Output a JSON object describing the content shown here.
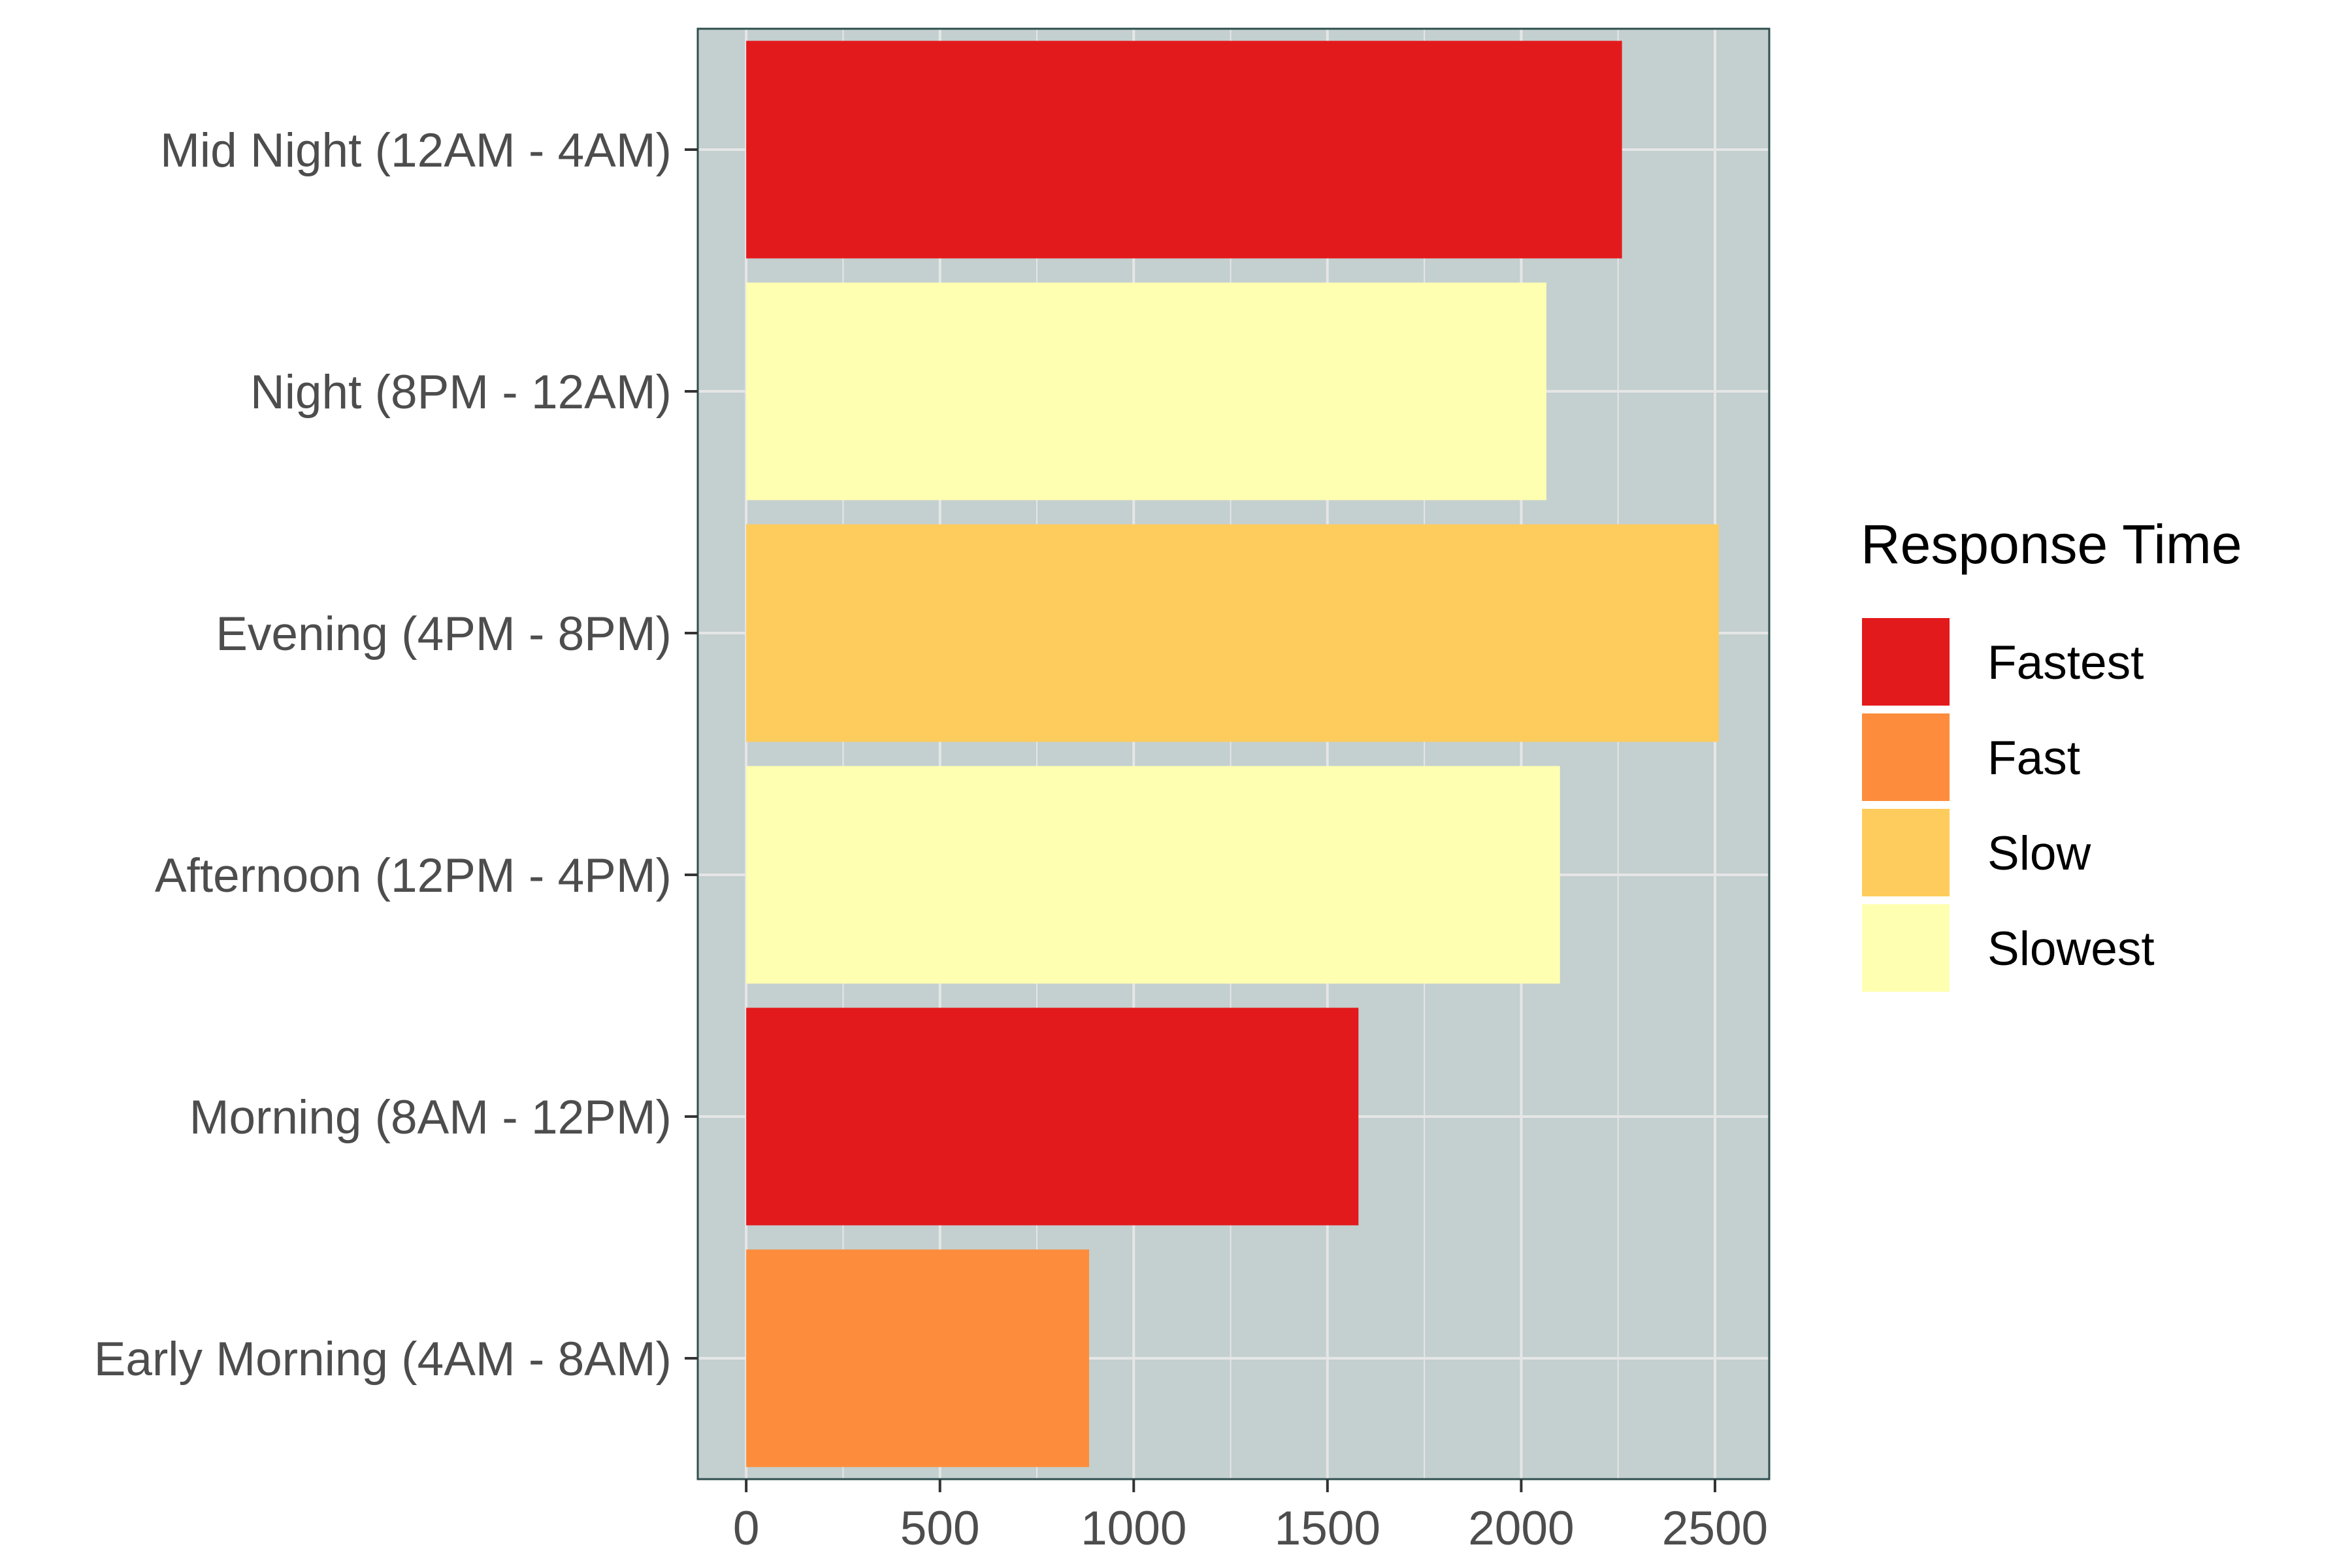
{
  "chart_data": {
    "type": "bar",
    "orientation": "horizontal",
    "title": "",
    "xlabel": "",
    "ylabel": "",
    "categories": [
      "Early Morning (4AM - 8AM)",
      "Morning (8AM - 12PM)",
      "Afternoon (12PM - 4PM)",
      "Evening (4PM - 8PM)",
      "Night (8PM - 12AM)",
      "Mid Night (12AM - 4AM)"
    ],
    "values": [
      885,
      1580,
      2100,
      2510,
      2065,
      2260
    ],
    "groups": [
      "Fast",
      "Fastest",
      "Slowest",
      "Slow",
      "Slowest",
      "Fastest"
    ],
    "xlim": [
      -125,
      2640
    ],
    "xticks": [
      0,
      500,
      1000,
      1500,
      2000,
      2500
    ],
    "grid": true,
    "panel_background": "#c4cfcf",
    "legend": {
      "title": "Response Time",
      "position": "right",
      "entries": [
        {
          "label": "Fastest",
          "color": "#e31a1c"
        },
        {
          "label": "Fast",
          "color": "#fd8d3c"
        },
        {
          "label": "Slow",
          "color": "#fecc5c"
        },
        {
          "label": "Slowest",
          "color": "#ffffb2"
        }
      ]
    }
  }
}
